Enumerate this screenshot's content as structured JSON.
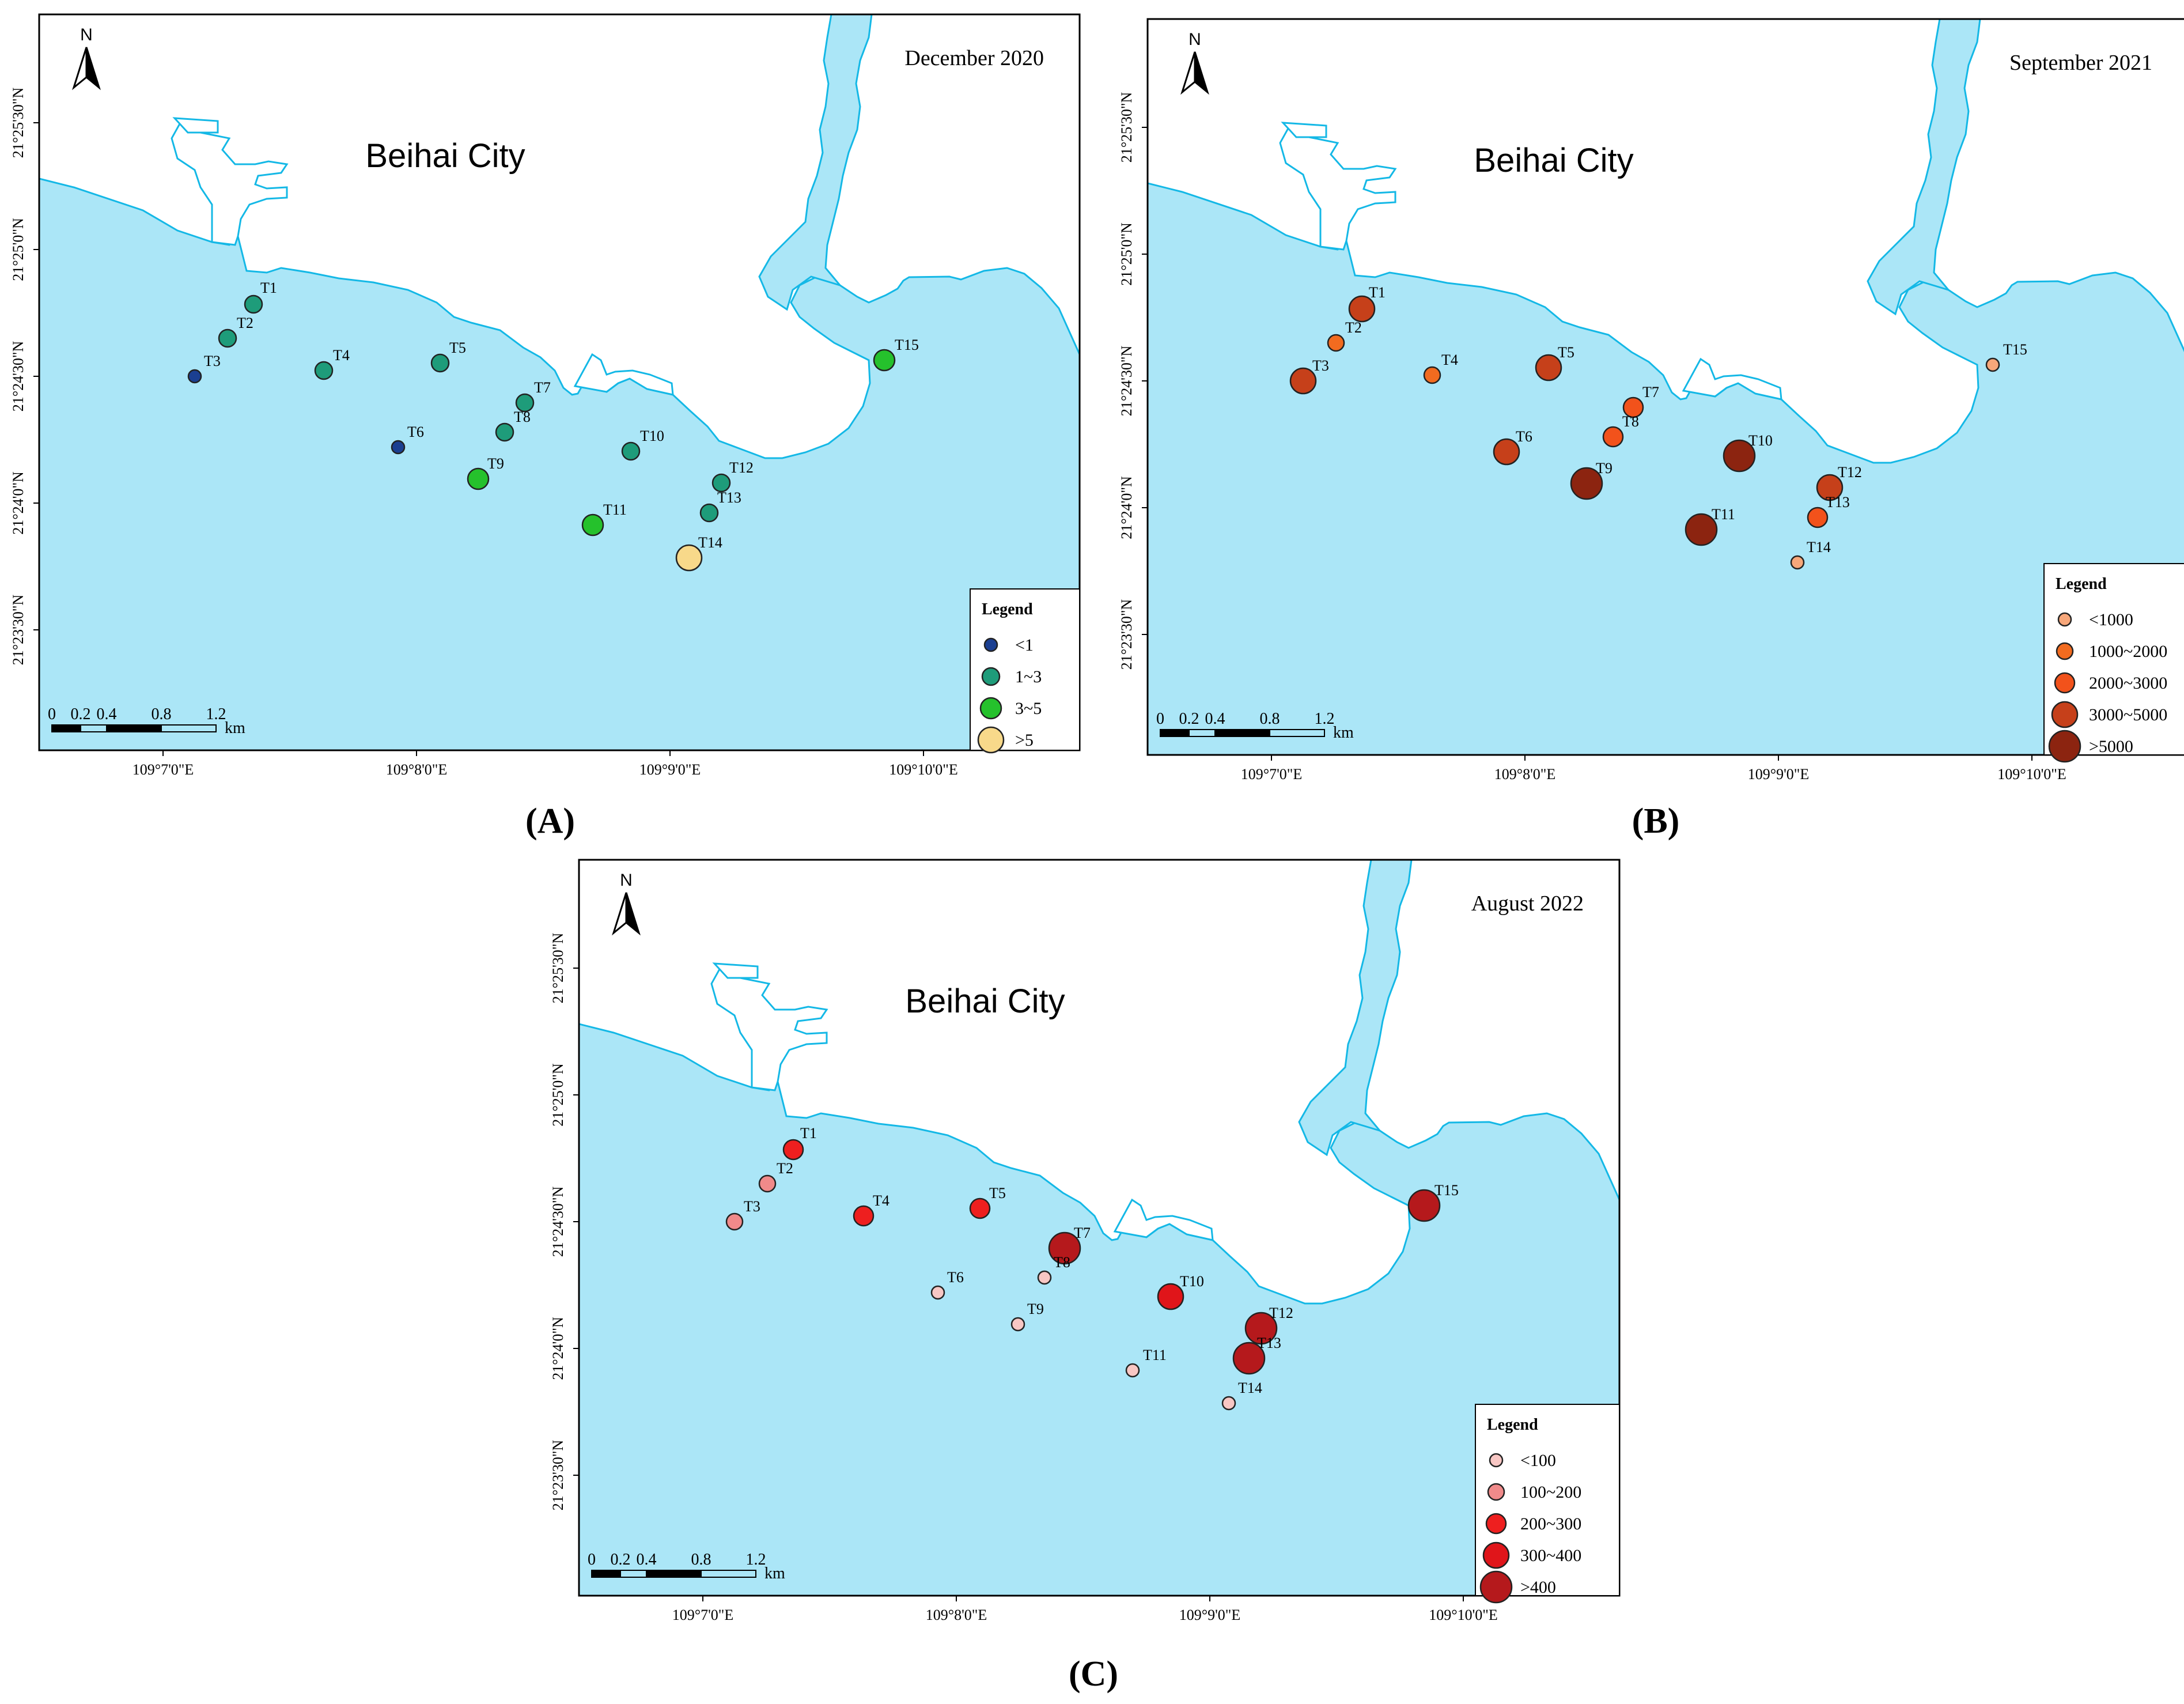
{
  "colors": {
    "sea": "#abe6f7",
    "coast": "#14b8e6",
    "land": "#ffffff",
    "frame": "#000000"
  },
  "city_label": "Beihai City",
  "north_label": "N",
  "lat_labels": [
    "21°23'30\"N",
    "21°24'0\"N",
    "21°24'30\"N",
    "21°25'0\"N",
    "21°25'30\"N"
  ],
  "lon_labels": [
    "109°7'0\"E",
    "109°8'0\"E",
    "109°9'0\"E",
    "109°10'0\"E"
  ],
  "scale_bar": {
    "ticks": [
      "0",
      "0.2",
      "0.4",
      "0.8",
      "1.2"
    ],
    "unit": "km"
  },
  "legend_title": "Legend",
  "panels": [
    {
      "letter": "(A)",
      "date": "December 2020",
      "legend": [
        {
          "label": "<1",
          "color": "#1b3f91",
          "size": 1
        },
        {
          "label": "1~3",
          "color": "#1e9c7a",
          "size": 2
        },
        {
          "label": "3~5",
          "color": "#25c12c",
          "size": 3
        },
        {
          "label": ">5",
          "color": "#f8d98a",
          "size": 4
        }
      ],
      "stations": [
        {
          "id": "T1",
          "cls": 1
        },
        {
          "id": "T2",
          "cls": 1
        },
        {
          "id": "T3",
          "cls": 0
        },
        {
          "id": "T4",
          "cls": 1
        },
        {
          "id": "T5",
          "cls": 1
        },
        {
          "id": "T6",
          "cls": 0
        },
        {
          "id": "T7",
          "cls": 1
        },
        {
          "id": "T8",
          "cls": 1
        },
        {
          "id": "T9",
          "cls": 2
        },
        {
          "id": "T10",
          "cls": 1
        },
        {
          "id": "T11",
          "cls": 2
        },
        {
          "id": "T12",
          "cls": 1
        },
        {
          "id": "T13",
          "cls": 1
        },
        {
          "id": "T14",
          "cls": 3
        },
        {
          "id": "T15",
          "cls": 2
        }
      ]
    },
    {
      "letter": "(B)",
      "date": "September 2021",
      "legend": [
        {
          "label": "<1000",
          "color": "#f7a77a",
          "size": 1
        },
        {
          "label": "1000~2000",
          "color": "#f26b1f",
          "size": 2
        },
        {
          "label": "2000~3000",
          "color": "#f2521b",
          "size": 3
        },
        {
          "label": "3000~5000",
          "color": "#c6401a",
          "size": 4
        },
        {
          "label": ">5000",
          "color": "#8c2410",
          "size": 5
        }
      ],
      "stations": [
        {
          "id": "T1",
          "cls": 3
        },
        {
          "id": "T2",
          "cls": 1
        },
        {
          "id": "T3",
          "cls": 3
        },
        {
          "id": "T4",
          "cls": 1
        },
        {
          "id": "T5",
          "cls": 3
        },
        {
          "id": "T6",
          "cls": 3
        },
        {
          "id": "T7",
          "cls": 2
        },
        {
          "id": "T8",
          "cls": 2
        },
        {
          "id": "T9",
          "cls": 4
        },
        {
          "id": "T10",
          "cls": 4
        },
        {
          "id": "T11",
          "cls": 4
        },
        {
          "id": "T12",
          "cls": 3
        },
        {
          "id": "T13",
          "cls": 2
        },
        {
          "id": "T14",
          "cls": 0
        },
        {
          "id": "T15",
          "cls": 0
        }
      ]
    },
    {
      "letter": "(C)",
      "date": "August 2022",
      "legend": [
        {
          "label": "<100",
          "color": "#f8c7c4",
          "size": 1
        },
        {
          "label": "100~200",
          "color": "#f08a8a",
          "size": 2
        },
        {
          "label": "200~300",
          "color": "#ee1f1f",
          "size": 3
        },
        {
          "label": "300~400",
          "color": "#e0151a",
          "size": 4
        },
        {
          "label": ">400",
          "color": "#b5191c",
          "size": 5
        }
      ],
      "stations": [
        {
          "id": "T1",
          "cls": 2
        },
        {
          "id": "T2",
          "cls": 1
        },
        {
          "id": "T3",
          "cls": 1
        },
        {
          "id": "T4",
          "cls": 2
        },
        {
          "id": "T5",
          "cls": 2
        },
        {
          "id": "T6",
          "cls": 0
        },
        {
          "id": "T7",
          "cls": 4
        },
        {
          "id": "T8",
          "cls": 0
        },
        {
          "id": "T9",
          "cls": 0
        },
        {
          "id": "T10",
          "cls": 3
        },
        {
          "id": "T11",
          "cls": 0
        },
        {
          "id": "T12",
          "cls": 4
        },
        {
          "id": "T13",
          "cls": 4
        },
        {
          "id": "T14",
          "cls": 0
        },
        {
          "id": "T15",
          "cls": 4
        }
      ]
    }
  ]
}
